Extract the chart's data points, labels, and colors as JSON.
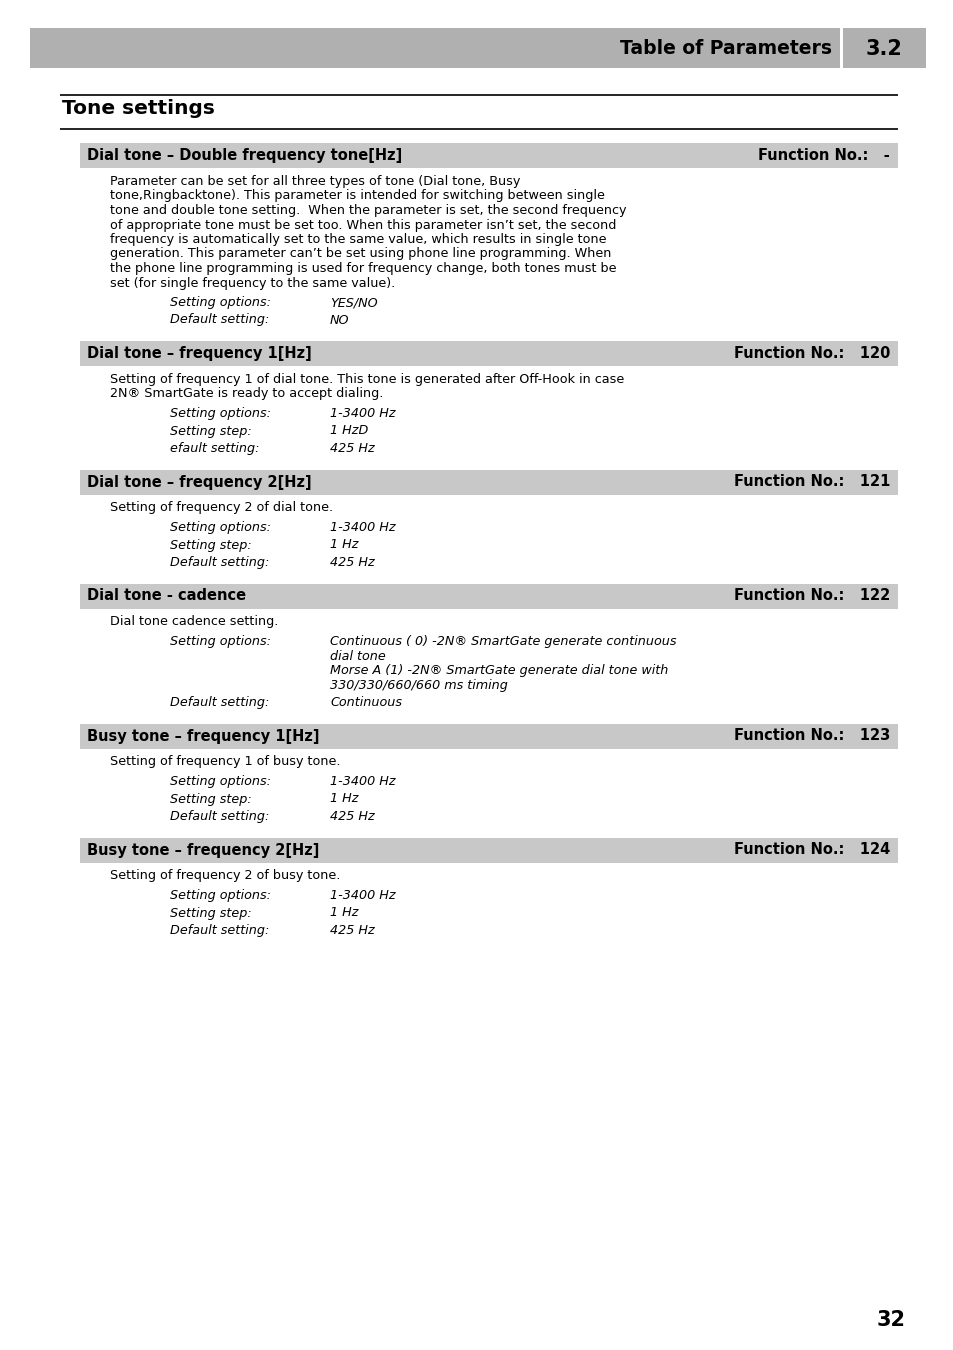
{
  "page_bg": "#ffffff",
  "header_bg": "#b0b0b0",
  "section_bg": "#c8c8c8",
  "header_text_color": "#000000",
  "body_text_color": "#000000",
  "header_title": "Table of Parameters",
  "header_number": "3.2",
  "section_title": "Tone settings",
  "page_number": "32",
  "blocks": [
    {
      "title": "Dial tone – Double frequency tone[Hz]",
      "function_no": "-",
      "description": "Parameter can be set for all three types of tone (Dial tone, Busy tone,Ringbacktone). This parameter is intended for switching between single tone and double tone setting.  When the parameter is set, the second frequency of appropriate tone must be set too. When this parameter isn’t set, the second frequency is automatically set to the same value, which results in single tone generation. This parameter can’t be set using phone line programming. When the phone line programming is used for frequency change, both tones must be set (for single frequency to the same value).",
      "desc_lines": [
        "Parameter can be set for all three types of tone (Dial tone, Busy",
        "tone,Ringbacktone). This parameter is intended for switching between single",
        "tone and double tone setting.  When the parameter is set, the second frequency",
        "of appropriate tone must be set too. When this parameter isn’t set, the second",
        "frequency is automatically set to the same value, which results in single tone",
        "generation. This parameter can’t be set using phone line programming. When",
        "the phone line programming is used for frequency change, both tones must be",
        "set (for single frequency to the same value)."
      ],
      "settings": [
        [
          "Setting options:",
          "YES/NO"
        ],
        [
          "Default setting:",
          "NO"
        ]
      ]
    },
    {
      "title": "Dial tone – frequency 1[Hz]",
      "function_no": "120",
      "desc_lines": [
        "Setting of frequency 1 of dial tone. This tone is generated after Off-Hook in case",
        "2N® SmartGate is ready to accept dialing."
      ],
      "settings": [
        [
          "Setting options:",
          "1-3400 Hz"
        ],
        [
          "Setting step:",
          "1 HzD"
        ],
        [
          "efault setting:",
          "425 Hz"
        ]
      ]
    },
    {
      "title": "Dial tone – frequency 2[Hz]",
      "function_no": "121",
      "desc_lines": [
        "Setting of frequency 2 of dial tone."
      ],
      "settings": [
        [
          "Setting options:",
          "1-3400 Hz"
        ],
        [
          "Setting step:",
          "1 Hz"
        ],
        [
          "Default setting:",
          "425 Hz"
        ]
      ]
    },
    {
      "title": "Dial tone - cadence",
      "function_no": "122",
      "desc_lines": [
        "Dial tone cadence setting."
      ],
      "settings": [
        [
          "Setting options:",
          "Continuous ( 0) -2N® SmartGate generate continuous\ndial tone\nMorse A (1) -2N® SmartGate generate dial tone with\n330/330/660/660 ms timing"
        ],
        [
          "Default setting:",
          "Continuous"
        ]
      ]
    },
    {
      "title": "Busy tone – frequency 1[Hz]",
      "function_no": "123",
      "desc_lines": [
        "Setting of frequency 1 of busy tone."
      ],
      "settings": [
        [
          "Setting options:",
          "1-3400 Hz"
        ],
        [
          "Setting step:",
          "1 Hz"
        ],
        [
          "Default setting:",
          "425 Hz"
        ]
      ]
    },
    {
      "title": "Busy tone – frequency 2[Hz]",
      "function_no": "124",
      "desc_lines": [
        "Setting of frequency 2 of busy tone."
      ],
      "settings": [
        [
          "Setting options:",
          "1-3400 Hz"
        ],
        [
          "Setting step:",
          "1 Hz"
        ],
        [
          "Default setting:",
          "425 Hz"
        ]
      ]
    }
  ]
}
